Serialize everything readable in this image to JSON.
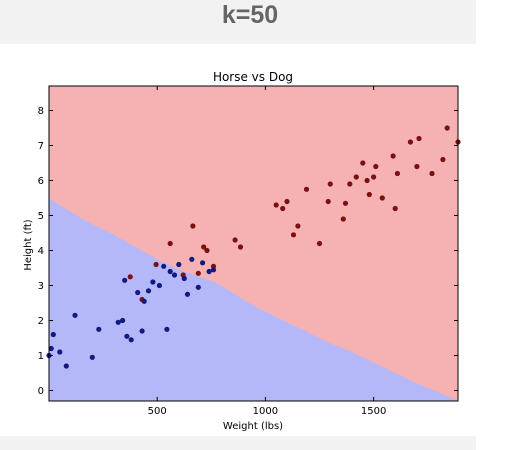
{
  "slide": {
    "title": "k=50"
  },
  "colors": {
    "horse_region": "#f6b1b2",
    "dog_region": "#b5b8f8",
    "horse_points": "#7a1010",
    "dog_points": "#101a80"
  },
  "chart_data": {
    "type": "scatter",
    "title": "Horse vs Dog",
    "xlabel": "Weight (lbs)",
    "ylabel": "Height (ft)",
    "xlim": [
      0,
      1890
    ],
    "ylim": [
      -0.3,
      8.7
    ],
    "xticks": [
      500,
      1000,
      1500
    ],
    "yticks": [
      0,
      1,
      2,
      3,
      4,
      5,
      6,
      7,
      8
    ],
    "grid": false,
    "decision_boundary": {
      "x": [
        0,
        100,
        200,
        300,
        400,
        500,
        600,
        700,
        780,
        860,
        940,
        1000,
        1100,
        1200,
        1300,
        1400,
        1500,
        1600,
        1700,
        1800,
        1890
      ],
      "y": [
        5.5,
        5.1,
        4.75,
        4.45,
        4.1,
        3.75,
        3.45,
        3.25,
        3.05,
        2.75,
        2.45,
        2.25,
        1.95,
        1.65,
        1.35,
        1.1,
        0.8,
        0.5,
        0.2,
        -0.05,
        -0.3
      ]
    },
    "series": [
      {
        "class": "horse",
        "x": [
          375,
          430,
          495,
          560,
          620,
          665,
          690,
          715,
          730,
          760,
          860,
          885,
          1050,
          1080,
          1100,
          1130,
          1150,
          1190,
          1250,
          1290,
          1300,
          1360,
          1370,
          1390,
          1420,
          1450,
          1470,
          1480,
          1500,
          1510,
          1540,
          1590,
          1600,
          1610,
          1670,
          1700,
          1710,
          1770,
          1820,
          1840,
          1890
        ],
        "y": [
          3.25,
          2.6,
          3.6,
          4.2,
          3.3,
          4.7,
          3.35,
          4.1,
          4.0,
          3.55,
          4.3,
          4.1,
          5.3,
          5.2,
          5.4,
          4.45,
          4.7,
          5.75,
          4.2,
          5.4,
          5.9,
          4.9,
          5.35,
          5.9,
          6.1,
          6.5,
          6.0,
          5.6,
          6.1,
          6.4,
          5.5,
          6.7,
          5.2,
          6.2,
          7.1,
          6.4,
          7.2,
          6.2,
          6.6,
          7.5,
          7.1
        ]
      },
      {
        "class": "dog",
        "x": [
          0,
          10,
          20,
          50,
          80,
          120,
          200,
          230,
          320,
          340,
          350,
          360,
          380,
          410,
          430,
          440,
          460,
          480,
          510,
          530,
          545,
          560,
          580,
          600,
          625,
          640,
          660,
          690,
          710,
          740,
          760
        ],
        "y": [
          1.0,
          1.2,
          1.6,
          1.1,
          0.7,
          2.15,
          0.95,
          1.75,
          1.95,
          2.0,
          3.15,
          1.55,
          1.45,
          2.8,
          1.7,
          2.55,
          2.85,
          3.1,
          3.0,
          3.55,
          1.75,
          3.4,
          3.3,
          3.6,
          3.2,
          2.75,
          3.75,
          2.95,
          3.65,
          3.4,
          3.45
        ]
      }
    ]
  }
}
